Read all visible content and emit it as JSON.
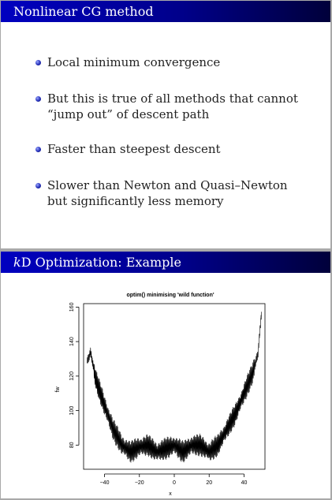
{
  "slides": [
    {
      "title": "Nonlinear CG method",
      "bullets": [
        "Local minimum convergence",
        "But this is true of all methods that cannot “jump out” of descent path",
        "Faster than steepest descent",
        "Slower than Newton and Quasi–Newton but significantly less memory"
      ]
    },
    {
      "title_var": "k",
      "title_rest": "D Optimization: Example"
    }
  ],
  "colors": {
    "title_bar": "#0000c0",
    "bullet": "#2530b8"
  },
  "chart_data": {
    "type": "line",
    "title": "optim() minimising 'wild function'",
    "xlabel": "x",
    "ylabel": "fw",
    "xlim": [
      -52,
      52
    ],
    "ylim": [
      66,
      162
    ],
    "xticks": [
      -40,
      -20,
      0,
      20,
      40
    ],
    "yticks": [
      80,
      100,
      120,
      140,
      160
    ],
    "grid": false,
    "legend": "none",
    "series": [
      {
        "envelope_x": [
          -50,
          -48,
          -45,
          -40,
          -35,
          -30,
          -25,
          -20,
          -15,
          -10,
          -5,
          0,
          5,
          10,
          15,
          20,
          25,
          30,
          35,
          40,
          45,
          48,
          50
        ],
        "envelope_y": [
          128,
          134,
          118,
          103,
          89,
          80,
          76,
          79,
          80,
          76,
          78,
          80,
          76,
          80,
          80,
          76,
          80,
          89,
          98,
          110,
          122,
          133,
          157
        ]
      }
    ]
  }
}
